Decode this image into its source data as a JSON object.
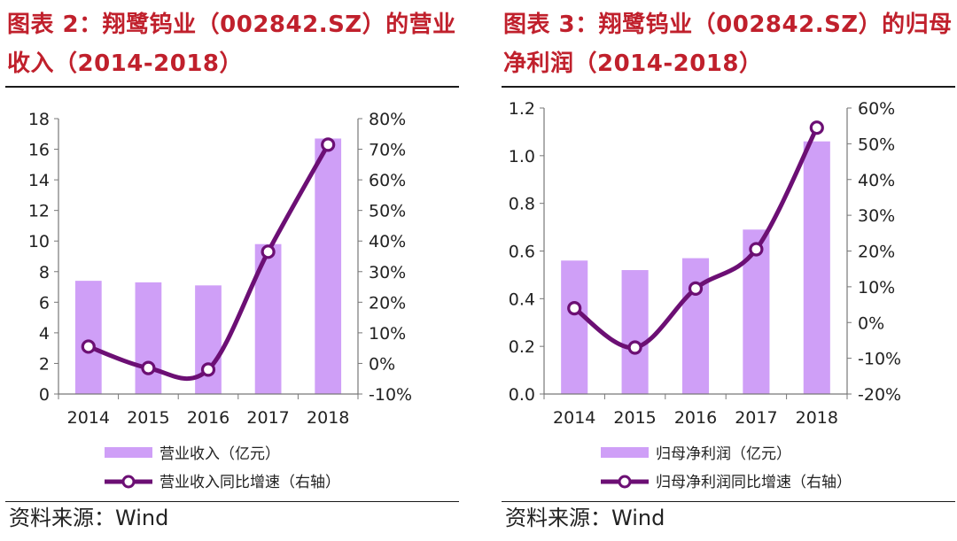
{
  "charts": [
    {
      "title": "图表 2：翔鹭钨业（002842.SZ）的营业收入（2014-2018）",
      "source": "资料来源：Wind",
      "chart_data": {
        "type": "bar",
        "categories": [
          "2014",
          "2015",
          "2016",
          "2017",
          "2018"
        ],
        "series": [
          {
            "name": "营业收入（亿元）",
            "type": "bar",
            "axis": "left",
            "values": [
              7.4,
              7.3,
              7.1,
              9.8,
              16.7
            ]
          },
          {
            "name": "营业收入同比增速（右轴）",
            "type": "line",
            "axis": "right",
            "values": [
              5.5,
              -1.5,
              -2.0,
              36.5,
              71.5
            ]
          }
        ],
        "ylim": [
          0,
          18
        ],
        "yticks": [
          "0",
          "2",
          "4",
          "6",
          "8",
          "10",
          "12",
          "14",
          "16",
          "18"
        ],
        "y2lim": [
          -10,
          80
        ],
        "y2ticks": [
          "-10%",
          "0%",
          "10%",
          "20%",
          "30%",
          "40%",
          "50%",
          "60%",
          "70%",
          "80%"
        ],
        "legend_position": "bottom",
        "grid": false,
        "colors": {
          "bar": "#cf9ff7",
          "line": "#6c0f74"
        }
      }
    },
    {
      "title": "图表 3：翔鹭钨业（002842.SZ）的归母净利润（2014-2018）",
      "source": "资料来源：Wind",
      "chart_data": {
        "type": "bar",
        "categories": [
          "2014",
          "2015",
          "2016",
          "2017",
          "2018"
        ],
        "series": [
          {
            "name": "归母净利润（亿元）",
            "type": "bar",
            "axis": "left",
            "values": [
              0.56,
              0.52,
              0.57,
              0.69,
              1.06
            ]
          },
          {
            "name": "归母净利润同比增速（右轴）",
            "type": "line",
            "axis": "right",
            "values": [
              4.0,
              -7.0,
              9.5,
              20.5,
              54.5
            ]
          }
        ],
        "ylim": [
          0,
          1.2
        ],
        "yticks": [
          "0.0",
          "0.2",
          "0.4",
          "0.6",
          "0.8",
          "1.0",
          "1.2"
        ],
        "y2lim": [
          -20,
          60
        ],
        "y2ticks": [
          "-20%",
          "-10%",
          "0%",
          "10%",
          "20%",
          "30%",
          "40%",
          "50%",
          "60%"
        ],
        "legend_position": "bottom",
        "grid": false,
        "colors": {
          "bar": "#cf9ff7",
          "line": "#6c0f74"
        }
      }
    }
  ]
}
